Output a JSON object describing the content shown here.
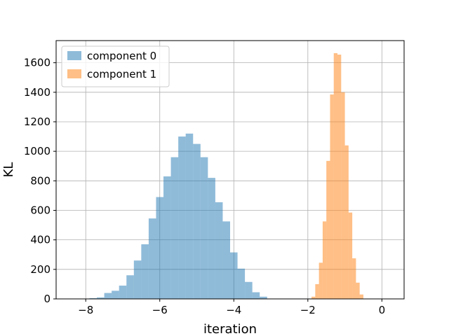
{
  "chart_data": {
    "type": "bar",
    "title": "",
    "xlabel": "iteration",
    "ylabel": "KL",
    "xlim": [
      -8.8,
      0.6
    ],
    "ylim": [
      0,
      1750
    ],
    "xticks": [
      -8,
      -6,
      -4,
      -2,
      0
    ],
    "xtick_labels": [
      "−8",
      "−6",
      "−4",
      "−2",
      "0"
    ],
    "yticks": [
      0,
      200,
      400,
      600,
      800,
      1000,
      1200,
      1400,
      1600
    ],
    "ytick_labels": [
      "0",
      "200",
      "400",
      "600",
      "800",
      "1000",
      "1200",
      "1400",
      "1600"
    ],
    "grid": true,
    "legend_position": "top-left",
    "series": [
      {
        "name": "component 0",
        "color": "#1f77b4",
        "alpha": 0.5,
        "bin_edges": [
          -8.1,
          -7.9,
          -7.7,
          -7.5,
          -7.3,
          -7.1,
          -6.9,
          -6.7,
          -6.5,
          -6.3,
          -6.1,
          -5.9,
          -5.7,
          -5.5,
          -5.3,
          -5.1,
          -4.9,
          -4.7,
          -4.5,
          -4.3,
          -4.1,
          -3.9,
          -3.7,
          -3.5,
          -3.3,
          -3.1
        ],
        "values": [
          2,
          5,
          10,
          40,
          55,
          90,
          160,
          260,
          370,
          545,
          690,
          830,
          960,
          1100,
          1120,
          1050,
          960,
          820,
          655,
          525,
          315,
          205,
          115,
          45,
          15
        ]
      },
      {
        "name": "component 1",
        "color": "#ff7f0e",
        "alpha": 0.5,
        "bin_edges": [
          -1.9,
          -1.8,
          -1.7,
          -1.6,
          -1.5,
          -1.4,
          -1.3,
          -1.2,
          -1.1,
          -1.0,
          -0.9,
          -0.8,
          -0.7,
          -0.6,
          -0.5
        ],
        "values": [
          15,
          100,
          245,
          525,
          935,
          1385,
          1665,
          1655,
          1400,
          1040,
          585,
          275,
          110,
          30
        ]
      }
    ]
  }
}
